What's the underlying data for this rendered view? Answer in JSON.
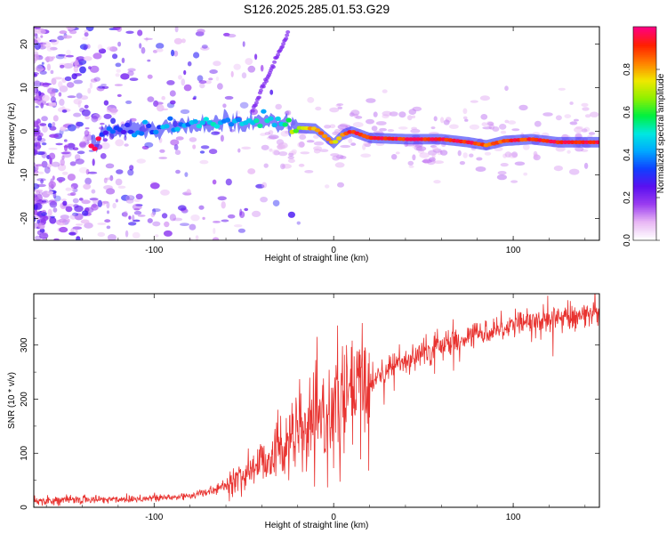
{
  "title": "S126.2025.285.01.53.G29",
  "chart_data": [
    {
      "type": "heatmap",
      "panel": "top",
      "xlabel": "Height of straight line (km)",
      "ylabel": "Frequency (Hz)",
      "xlim": [
        -167,
        148
      ],
      "ylim": [
        -25,
        24
      ],
      "xticks": [
        -100,
        0,
        100
      ],
      "yticks": [
        -20,
        -10,
        0,
        10,
        20
      ],
      "colorbar": {
        "label": "Normalized spectral amplitude",
        "range": [
          0,
          1
        ],
        "ticks": [
          0.0,
          0.2,
          0.4,
          0.6,
          0.8
        ],
        "colors": [
          "#ffffff",
          "#e8b6f4",
          "#9a3cf0",
          "#5a10f0",
          "#1040ff",
          "#00a8ff",
          "#00e8e0",
          "#00f040",
          "#90f000",
          "#f0e800",
          "#ff8000",
          "#ff2000",
          "#ff0080"
        ]
      },
      "signal_track": [
        {
          "x": -130,
          "f": 0.0,
          "amp": 0.3
        },
        {
          "x": -110,
          "f": 0.2,
          "amp": 0.35
        },
        {
          "x": -90,
          "f": 0.8,
          "amp": 0.4
        },
        {
          "x": -70,
          "f": 1.8,
          "amp": 0.45
        },
        {
          "x": -50,
          "f": 2.2,
          "amp": 0.45
        },
        {
          "x": -30,
          "f": 2.4,
          "amp": 0.5
        },
        {
          "x": -20,
          "f": 0.8,
          "amp": 0.7
        },
        {
          "x": -10,
          "f": 0.6,
          "amp": 0.85
        },
        {
          "x": 0,
          "f": -2.8,
          "amp": 0.75
        },
        {
          "x": 5,
          "f": -0.8,
          "amp": 0.85
        },
        {
          "x": 10,
          "f": 0.0,
          "amp": 0.9
        },
        {
          "x": 20,
          "f": -1.5,
          "amp": 0.95
        },
        {
          "x": 40,
          "f": -1.8,
          "amp": 0.95
        },
        {
          "x": 60,
          "f": -1.8,
          "amp": 0.95
        },
        {
          "x": 75,
          "f": -2.5,
          "amp": 0.9
        },
        {
          "x": 85,
          "f": -3.2,
          "amp": 0.9
        },
        {
          "x": 95,
          "f": -2.2,
          "amp": 0.9
        },
        {
          "x": 110,
          "f": -1.8,
          "amp": 0.92
        },
        {
          "x": 125,
          "f": -2.5,
          "amp": 0.95
        },
        {
          "x": 148,
          "f": -2.5,
          "amp": 0.95
        }
      ]
    },
    {
      "type": "line",
      "panel": "bottom",
      "xlabel": "Height of straight line (km)",
      "ylabel": "SNR (10 * v/v)",
      "xlim": [
        -167,
        148
      ],
      "ylim": [
        0,
        395
      ],
      "xticks": [
        -100,
        0,
        100
      ],
      "yticks": [
        0,
        100,
        200,
        300
      ],
      "color": "#e8322f",
      "series": [
        {
          "name": "SNR",
          "x": [
            -167,
            -140,
            -120,
            -100,
            -90,
            -80,
            -70,
            -60,
            -50,
            -40,
            -30,
            -20,
            -10,
            0,
            10,
            20,
            30,
            40,
            50,
            60,
            70,
            80,
            90,
            100,
            110,
            120,
            130,
            140,
            148
          ],
          "y": [
            12,
            14,
            15,
            17,
            18,
            22,
            28,
            40,
            60,
            85,
            110,
            135,
            150,
            180,
            205,
            230,
            255,
            270,
            285,
            300,
            310,
            320,
            330,
            338,
            342,
            348,
            352,
            355,
            357
          ]
        }
      ]
    }
  ]
}
